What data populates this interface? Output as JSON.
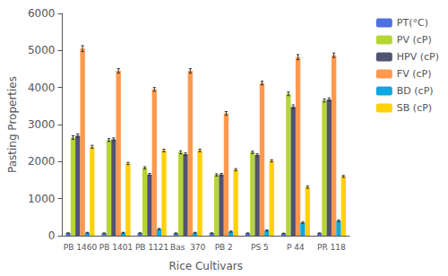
{
  "chart_data": {
    "type": "bar",
    "categories": [
      "PB 1460",
      "PB 1401",
      "PB 1121",
      "Bas  370",
      "PB 2",
      "PS 5",
      "P 44",
      "PR 118"
    ],
    "series": [
      {
        "name": "PT(°C)",
        "values": [
          70,
          68,
          72,
          68,
          70,
          68,
          62,
          68
        ],
        "errors": [
          5,
          5,
          5,
          5,
          5,
          5,
          5,
          5
        ]
      },
      {
        "name": "PV (cP)",
        "values": [
          2650,
          2580,
          1830,
          2250,
          1640,
          2250,
          3830,
          3650
        ],
        "errors": [
          50,
          40,
          30,
          40,
          30,
          30,
          50,
          40
        ]
      },
      {
        "name": "HPV (cP)",
        "values": [
          2700,
          2600,
          1650,
          2200,
          1650,
          2180,
          3480,
          3680
        ],
        "errors": [
          50,
          40,
          30,
          35,
          30,
          30,
          50,
          40
        ]
      },
      {
        "name": "FV (cP)",
        "values": [
          5050,
          4450,
          3950,
          4450,
          3300,
          4120,
          4820,
          4870
        ],
        "errors": [
          80,
          60,
          50,
          60,
          50,
          50,
          70,
          60
        ]
      },
      {
        "name": "BD (cP)",
        "values": [
          80,
          80,
          180,
          80,
          110,
          140,
          350,
          400
        ],
        "errors": [
          10,
          10,
          15,
          10,
          15,
          15,
          20,
          20
        ]
      },
      {
        "name": "SB (cP)",
        "values": [
          2400,
          1950,
          2300,
          2300,
          1780,
          2020,
          1310,
          1600
        ],
        "errors": [
          40,
          30,
          35,
          35,
          30,
          30,
          30,
          25
        ]
      }
    ],
    "xlabel": "Rice Cultivars",
    "ylabel": "Pasting Properties",
    "ylim": [
      0,
      6000
    ],
    "yticks": [
      0,
      1000,
      2000,
      3000,
      4000,
      5000,
      6000
    ],
    "grid": false,
    "legend": "upper right"
  }
}
